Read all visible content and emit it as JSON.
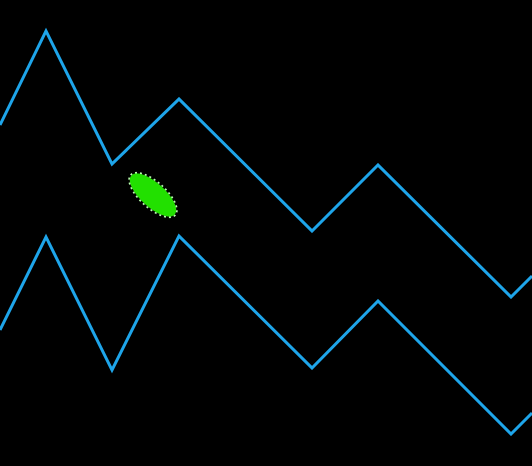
{
  "colors": {
    "background": "#000000",
    "cave_wall": "#1ea5ea",
    "ship_fill": "#22e000",
    "ship_outline": "#b9ffb0"
  },
  "icons": {
    "player": "ship-icon"
  }
}
